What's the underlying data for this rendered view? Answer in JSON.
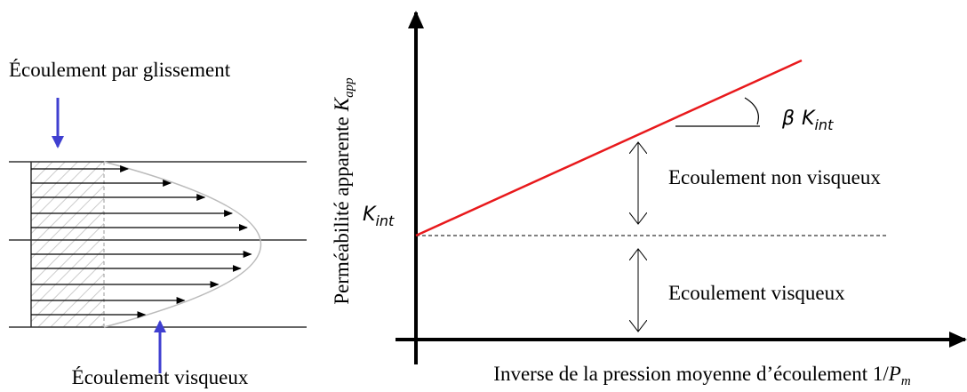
{
  "left_panel": {
    "top_label": "Écoulement par glissement",
    "bottom_label": "Écoulement visqueux"
  },
  "graph": {
    "y_axis_label": {
      "text": "Perméabilité apparente",
      "symbol": "K",
      "subscript": "app"
    },
    "x_axis_label": {
      "text": "Inverse de la pression moyenne d’écoulement 1/",
      "symbol": "P",
      "subscript": "m"
    },
    "intercept_label": {
      "symbol": "K",
      "subscript": "int"
    },
    "slope_label": {
      "prefix": "β",
      "symbol": "K",
      "subscript": "int"
    },
    "regions": [
      "Ecoulement non visqueux",
      "Ecoulement visqueux"
    ]
  }
}
